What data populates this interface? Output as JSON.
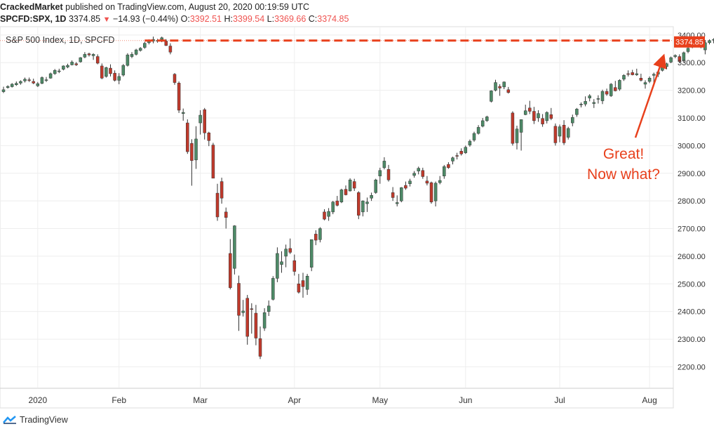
{
  "header": {
    "author": "CrackedMarket",
    "published_text": "published on TradingView.com, August 20, 2020 00:19:59 UTC",
    "symbol": "SPCFD:SPX, 1D",
    "last": "3374.85",
    "change": "−14.93 (−0.44%)",
    "o_label": "O:",
    "o": "3392.51",
    "h_label": "H:",
    "h": "3399.54",
    "l_label": "L:",
    "l": "3369.66",
    "c_label": "C:",
    "c": "3374.85"
  },
  "chart_title": "S&P 500 Index, 1D, SPCFD",
  "annotation": {
    "line1": "Great!",
    "line2": "Now what?"
  },
  "price_label": "3374.85",
  "footer": {
    "brand": "TradingView"
  },
  "colors": {
    "up": "#4d8a67",
    "down": "#c0392b",
    "accent": "#e8401c",
    "grid": "#eeeeee"
  },
  "chart_data": {
    "type": "candlestick",
    "title": "S&P 500 Index, 1D, SPCFD",
    "ylim": [
      2125,
      3430
    ],
    "y_ticks": [
      2200,
      2300,
      2400,
      2500,
      2600,
      2700,
      2800,
      2900,
      3000,
      3100,
      3200,
      3300,
      3400
    ],
    "y_tick_labels": [
      "2200.00",
      "2300.00",
      "2400.00",
      "2500.00",
      "2600.00",
      "2700.00",
      "2800.00",
      "2900.00",
      "3000.00",
      "3100.00",
      "3200.00",
      "3300.00",
      "3400.00"
    ],
    "x_labels": [
      {
        "label": "2020",
        "index": 8
      },
      {
        "label": "Feb",
        "index": 27
      },
      {
        "label": "Mar",
        "index": 46
      },
      {
        "label": "Apr",
        "index": 68
      },
      {
        "label": "May",
        "index": 88
      },
      {
        "label": "Jun",
        "index": 108
      },
      {
        "label": "Jul",
        "index": 130
      },
      {
        "label": "Aug",
        "index": 151
      }
    ],
    "horizontal_level": 3380,
    "last_close": 3374.85,
    "candles": [
      [
        3195,
        3213,
        3190,
        3202
      ],
      [
        3210,
        3218,
        3206,
        3214
      ],
      [
        3213,
        3226,
        3210,
        3222
      ],
      [
        3220,
        3232,
        3216,
        3225
      ],
      [
        3226,
        3236,
        3220,
        3232
      ],
      [
        3234,
        3246,
        3228,
        3240
      ],
      [
        3238,
        3246,
        3230,
        3236
      ],
      [
        3232,
        3242,
        3222,
        3226
      ],
      [
        3216,
        3230,
        3212,
        3224
      ],
      [
        3225,
        3250,
        3222,
        3246
      ],
      [
        3238,
        3248,
        3230,
        3238
      ],
      [
        3244,
        3264,
        3242,
        3260
      ],
      [
        3260,
        3277,
        3256,
        3272
      ],
      [
        3268,
        3278,
        3262,
        3270
      ],
      [
        3276,
        3290,
        3272,
        3288
      ],
      [
        3284,
        3296,
        3280,
        3290
      ],
      [
        3292,
        3308,
        3290,
        3302
      ],
      [
        3296,
        3302,
        3288,
        3292
      ],
      [
        3303,
        3320,
        3300,
        3318
      ],
      [
        3320,
        3338,
        3316,
        3330
      ],
      [
        3332,
        3336,
        3322,
        3328
      ],
      [
        3325,
        3334,
        3310,
        3330
      ],
      [
        3322,
        3330,
        3294,
        3298
      ],
      [
        3288,
        3297,
        3240,
        3244
      ],
      [
        3250,
        3285,
        3246,
        3282
      ],
      [
        3280,
        3294,
        3250,
        3260
      ],
      [
        3262,
        3272,
        3232,
        3236
      ],
      [
        3236,
        3262,
        3222,
        3250
      ],
      [
        3255,
        3295,
        3250,
        3290
      ],
      [
        3290,
        3334,
        3286,
        3328
      ],
      [
        3322,
        3338,
        3316,
        3330
      ],
      [
        3330,
        3350,
        3326,
        3346
      ],
      [
        3344,
        3356,
        3340,
        3352
      ],
      [
        3355,
        3375,
        3350,
        3370
      ],
      [
        3372,
        3384,
        3366,
        3378
      ],
      [
        3378,
        3394,
        3370,
        3384
      ],
      [
        3380,
        3386,
        3372,
        3380
      ],
      [
        3384,
        3394,
        3374,
        3390
      ],
      [
        3378,
        3385,
        3360,
        3362
      ],
      [
        3360,
        3370,
        3330,
        3338
      ],
      [
        3258,
        3262,
        3220,
        3228
      ],
      [
        3226,
        3232,
        3118,
        3128
      ],
      [
        3116,
        3134,
        3090,
        3120
      ],
      [
        3082,
        3095,
        2970,
        2978
      ],
      [
        3008,
        3023,
        2855,
        2946
      ],
      [
        2948,
        3070,
        2916,
        3024
      ],
      [
        3082,
        3128,
        3040,
        3110
      ],
      [
        3130,
        3136,
        3022,
        3046
      ],
      [
        3046,
        3050,
        2998,
        3018
      ],
      [
        3002,
        3010,
        2882,
        2882
      ],
      [
        2828,
        2862,
        2728,
        2742
      ],
      [
        2870,
        2884,
        2790,
        2810
      ],
      [
        2760,
        2776,
        2700,
        2740
      ],
      [
        2610,
        2662,
        2480,
        2486
      ],
      [
        2556,
        2712,
        2534,
        2710
      ],
      [
        2502,
        2530,
        2330,
        2386
      ],
      [
        2396,
        2442,
        2382,
        2402
      ],
      [
        2448,
        2460,
        2280,
        2310
      ],
      [
        2410,
        2430,
        2320,
        2408
      ],
      [
        2394,
        2424,
        2278,
        2304
      ],
      [
        2302,
        2346,
        2228,
        2238
      ],
      [
        2340,
        2412,
        2330,
        2396
      ],
      [
        2400,
        2440,
        2384,
        2420
      ],
      [
        2444,
        2528,
        2440,
        2520
      ],
      [
        2520,
        2632,
        2506,
        2610
      ],
      [
        2570,
        2618,
        2540,
        2580
      ],
      [
        2600,
        2642,
        2560,
        2626
      ],
      [
        2628,
        2664,
        2608,
        2614
      ],
      [
        2584,
        2606,
        2530,
        2545
      ],
      [
        2500,
        2536,
        2465,
        2470
      ],
      [
        2512,
        2540,
        2450,
        2490
      ],
      [
        2480,
        2536,
        2460,
        2528
      ],
      [
        2560,
        2660,
        2546,
        2660
      ],
      [
        2680,
        2694,
        2640,
        2658
      ],
      [
        2660,
        2705,
        2650,
        2700
      ],
      [
        2760,
        2770,
        2730,
        2734
      ],
      [
        2744,
        2774,
        2728,
        2762
      ],
      [
        2760,
        2800,
        2752,
        2796
      ],
      [
        2800,
        2818,
        2780,
        2784
      ],
      [
        2796,
        2844,
        2792,
        2840
      ],
      [
        2842,
        2856,
        2820,
        2822
      ],
      [
        2836,
        2882,
        2834,
        2876
      ],
      [
        2870,
        2880,
        2836,
        2846
      ],
      [
        2830,
        2835,
        2734,
        2748
      ],
      [
        2760,
        2802,
        2744,
        2800
      ],
      [
        2790,
        2812,
        2760,
        2796
      ],
      [
        2810,
        2830,
        2800,
        2820
      ],
      [
        2830,
        2880,
        2826,
        2876
      ],
      [
        2890,
        2920,
        2862,
        2910
      ],
      [
        2920,
        2958,
        2914,
        2944
      ],
      [
        2914,
        2930,
        2870,
        2876
      ],
      [
        2830,
        2850,
        2800,
        2812
      ],
      [
        2790,
        2820,
        2780,
        2794
      ],
      [
        2800,
        2850,
        2795,
        2848
      ],
      [
        2856,
        2870,
        2840,
        2846
      ],
      [
        2862,
        2880,
        2852,
        2872
      ],
      [
        2892,
        2908,
        2884,
        2900
      ],
      [
        2908,
        2924,
        2896,
        2918
      ],
      [
        2910,
        2920,
        2880,
        2888
      ],
      [
        2872,
        2890,
        2856,
        2864
      ],
      [
        2866,
        2870,
        2790,
        2796
      ],
      [
        2800,
        2870,
        2780,
        2864
      ],
      [
        2866,
        2890,
        2860,
        2874
      ],
      [
        2890,
        2930,
        2880,
        2924
      ],
      [
        2932,
        2940,
        2916,
        2920
      ],
      [
        2944,
        2960,
        2932,
        2956
      ],
      [
        2964,
        2974,
        2950,
        2962
      ],
      [
        2980,
        2990,
        2964,
        2970
      ],
      [
        2974,
        3000,
        2970,
        2994
      ],
      [
        3002,
        3022,
        2996,
        3016
      ],
      [
        3020,
        3050,
        3014,
        3044
      ],
      [
        3044,
        3074,
        3040,
        3066
      ],
      [
        3070,
        3100,
        3066,
        3090
      ],
      [
        3090,
        3108,
        3086,
        3104
      ],
      [
        3160,
        3200,
        3156,
        3198
      ],
      [
        3200,
        3238,
        3196,
        3228
      ],
      [
        3214,
        3222,
        3180,
        3208
      ],
      [
        3212,
        3232,
        3204,
        3230
      ],
      [
        3202,
        3212,
        3188,
        3192
      ],
      [
        3118,
        3124,
        3000,
        3008
      ],
      [
        3010,
        3072,
        2986,
        3060
      ],
      [
        3048,
        3095,
        2982,
        3094
      ],
      [
        3112,
        3148,
        3110,
        3126
      ],
      [
        3136,
        3162,
        3114,
        3124
      ],
      [
        3124,
        3140,
        3078,
        3090
      ],
      [
        3100,
        3128,
        3086,
        3116
      ],
      [
        3098,
        3114,
        3068,
        3078
      ],
      [
        3090,
        3124,
        3080,
        3120
      ],
      [
        3112,
        3136,
        3092,
        3098
      ],
      [
        3070,
        3080,
        3000,
        3010
      ],
      [
        3034,
        3076,
        3012,
        3068
      ],
      [
        3074,
        3092,
        3002,
        3010
      ],
      [
        3030,
        3068,
        3022,
        3062
      ],
      [
        3082,
        3112,
        3070,
        3102
      ],
      [
        3112,
        3136,
        3104,
        3132
      ],
      [
        3148,
        3156,
        3138,
        3150
      ],
      [
        3150,
        3178,
        3142,
        3160
      ],
      [
        3172,
        3186,
        3160,
        3180
      ],
      [
        3152,
        3168,
        3136,
        3156
      ],
      [
        3168,
        3182,
        3152,
        3170
      ],
      [
        3162,
        3202,
        3150,
        3196
      ],
      [
        3196,
        3206,
        3180,
        3186
      ],
      [
        3180,
        3226,
        3176,
        3222
      ],
      [
        3210,
        3234,
        3196,
        3198
      ],
      [
        3204,
        3240,
        3198,
        3236
      ],
      [
        3240,
        3258,
        3234,
        3254
      ],
      [
        3260,
        3272,
        3250,
        3258
      ],
      [
        3264,
        3274,
        3254,
        3256
      ],
      [
        3256,
        3278,
        3252,
        3260
      ],
      [
        3244,
        3260,
        3232,
        3236
      ],
      [
        3222,
        3236,
        3206,
        3228
      ],
      [
        3232,
        3250,
        3226,
        3244
      ],
      [
        3254,
        3264,
        3222,
        3258
      ],
      [
        3258,
        3270,
        3248,
        3266
      ],
      [
        3272,
        3286,
        3268,
        3284
      ],
      [
        3286,
        3300,
        3276,
        3296
      ],
      [
        3302,
        3322,
        3298,
        3318
      ],
      [
        3322,
        3330,
        3316,
        3326
      ],
      [
        3322,
        3330,
        3298,
        3304
      ],
      [
        3308,
        3340,
        3300,
        3336
      ],
      [
        3340,
        3356,
        3334,
        3352
      ],
      [
        3358,
        3376,
        3352,
        3372
      ],
      [
        3368,
        3384,
        3360,
        3380
      ],
      [
        3376,
        3386,
        3352,
        3358
      ],
      [
        3346,
        3382,
        3330,
        3372
      ],
      [
        3372,
        3384,
        3366,
        3380
      ],
      [
        3381,
        3388,
        3370,
        3384
      ],
      [
        3382,
        3393,
        3370,
        3388
      ],
      [
        3392,
        3400,
        3369,
        3375
      ]
    ]
  }
}
